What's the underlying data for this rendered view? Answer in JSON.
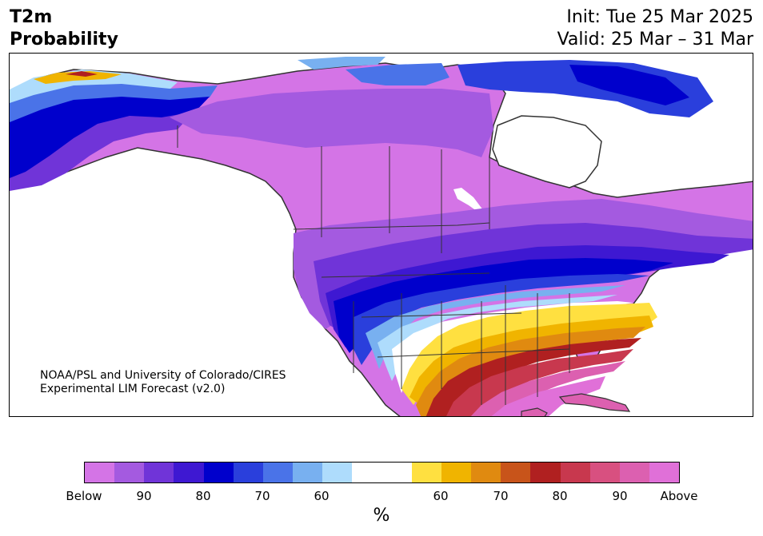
{
  "header": {
    "variable": "T2m",
    "product": "Probability",
    "init": "Init: Tue 25 Mar 2025",
    "valid": "Valid: 25 Mar – 31 Mar"
  },
  "map": {
    "credit_line1": "NOAA/PSL and University of Colorado/CIRES",
    "credit_line2": "Experimental LIM Forecast (v2.0)"
  },
  "colorbar": {
    "colors": [
      "#d474e6",
      "#a45ae0",
      "#7034d8",
      "#3e18d2",
      "#0000cc",
      "#2a3fdc",
      "#4a73e8",
      "#78b0f0",
      "#aedcfc",
      "#ffffff",
      "#ffffff",
      "#ffe040",
      "#f0b400",
      "#e08a10",
      "#c8541a",
      "#b02020",
      "#c8384e",
      "#d85080",
      "#dc60b0",
      "#e070d8"
    ],
    "ticks": [
      "Below",
      "90",
      "80",
      "70",
      "60",
      "60",
      "70",
      "80",
      "90",
      "Above"
    ],
    "unit": "%"
  },
  "colors": {
    "below_pale": "#d474e6",
    "below_mid": "#a45ae0",
    "below_strong": "#0000cc",
    "near_normal": "#ffffff",
    "above_yellow": "#ffe040",
    "above_red": "#b02020",
    "above_pink": "#dc60b0"
  }
}
